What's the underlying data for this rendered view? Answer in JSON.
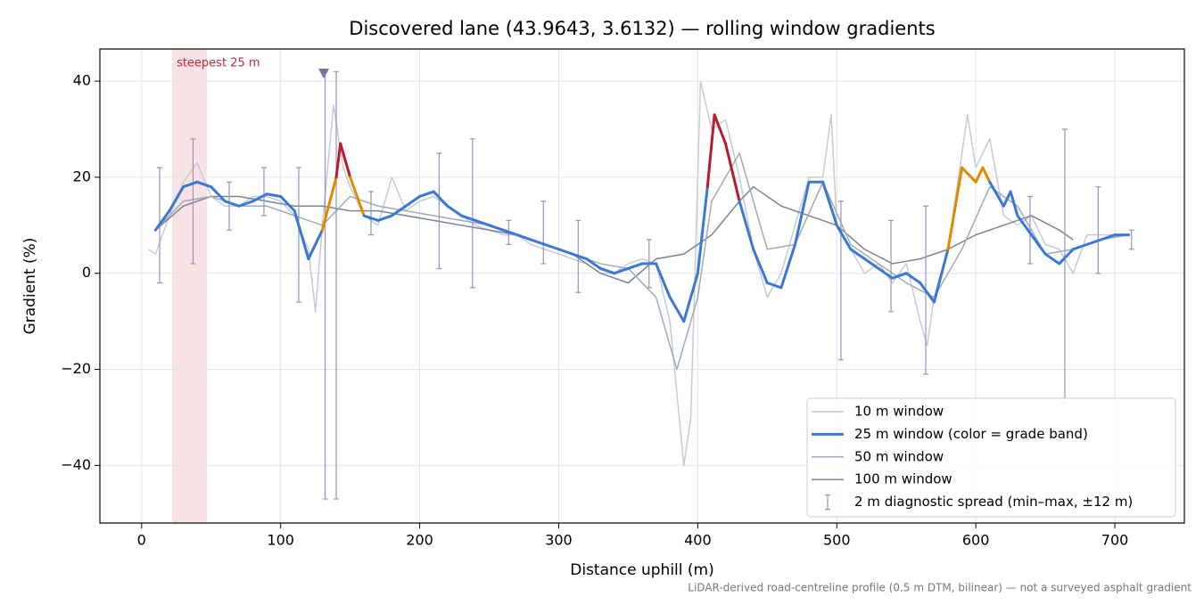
{
  "chart_data": {
    "type": "line",
    "title": "Discovered lane (43.9643, 3.6132) — rolling window gradients",
    "x_label": "Distance uphill (m)",
    "y_label": "Gradient (%)",
    "footnote": "LiDAR-derived road-centreline profile (0.5 m DTM, bilinear) — not a surveyed asphalt gradient",
    "xlim": [
      -30,
      750
    ],
    "ylim": [
      -52,
      46.7
    ],
    "xticks": [
      0,
      100,
      200,
      300,
      400,
      500,
      600,
      700
    ],
    "yticks": [
      {
        "value": -40,
        "label": "−40"
      },
      {
        "value": -20,
        "label": "−20"
      },
      0,
      20,
      40
    ],
    "grid": true,
    "legend": "lower right",
    "highlight": {
      "x": [
        22,
        47
      ],
      "label": "steepest 25 m",
      "color": "#e8a0a8",
      "label_color": "#c0283a"
    },
    "marker": {
      "x": 131,
      "y": 41.5,
      "color": "#8070a8"
    },
    "grade_bands": [
      {
        "min": 20,
        "color": "#e08a00"
      },
      {
        "min": 25,
        "color": "#b81c2c"
      }
    ],
    "series": [
      {
        "name": "10 m window",
        "color": "#c4ccd6",
        "width": 1.5,
        "x": [
          5,
          10,
          20,
          30,
          40,
          50,
          60,
          70,
          80,
          90,
          100,
          110,
          120,
          125,
          130,
          138,
          145,
          150,
          160,
          170,
          180,
          190,
          200,
          210,
          220,
          230,
          240,
          250,
          260,
          270,
          280,
          290,
          300,
          310,
          320,
          330,
          340,
          350,
          360,
          370,
          380,
          390,
          395,
          402,
          410,
          420,
          430,
          440,
          450,
          460,
          470,
          480,
          490,
          496,
          500,
          510,
          520,
          530,
          540,
          550,
          560,
          565,
          570,
          580,
          590,
          594,
          600,
          610,
          620,
          630,
          640,
          650,
          660,
          670,
          680,
          690,
          700,
          710
        ],
        "values": [
          5,
          4,
          12,
          19,
          23,
          16,
          14,
          14,
          16,
          16,
          15,
          12,
          5,
          -8,
          10,
          35,
          22,
          18,
          12,
          10,
          20,
          13,
          15,
          16,
          14,
          12,
          10,
          9,
          8,
          8,
          6,
          5,
          4,
          3,
          2,
          0,
          0,
          2,
          3,
          2,
          -10,
          -40,
          -30,
          40,
          30,
          32,
          20,
          5,
          -5,
          0,
          10,
          20,
          20,
          33,
          10,
          5,
          0,
          2,
          -2,
          2,
          -10,
          -15,
          -5,
          5,
          25,
          33,
          22,
          28,
          12,
          10,
          12,
          6,
          5,
          0,
          8,
          8,
          8,
          8
        ]
      },
      {
        "name": "25 m window (color = grade band)",
        "color": "#3a78d6",
        "width": 3,
        "x": [
          10,
          20,
          30,
          40,
          50,
          60,
          70,
          80,
          90,
          100,
          110,
          120,
          130,
          140,
          143,
          150,
          160,
          170,
          180,
          190,
          200,
          210,
          220,
          230,
          240,
          250,
          260,
          270,
          280,
          290,
          300,
          310,
          320,
          330,
          340,
          350,
          360,
          370,
          380,
          390,
          400,
          407,
          412,
          420,
          430,
          440,
          450,
          460,
          470,
          480,
          490,
          500,
          510,
          520,
          530,
          540,
          550,
          560,
          570,
          580,
          590,
          600,
          605,
          610,
          620,
          625,
          630,
          640,
          650,
          660,
          670,
          680,
          690,
          700,
          710
        ],
        "values": [
          9,
          13,
          18,
          19,
          18,
          15,
          14,
          15,
          16.5,
          16,
          13,
          3,
          9,
          20,
          27,
          20,
          12,
          11,
          12,
          14,
          16,
          17,
          14,
          12,
          11,
          10,
          9,
          8,
          7,
          6,
          5,
          4,
          3,
          1,
          0,
          1,
          2,
          2,
          -5,
          -10,
          0,
          18,
          33,
          27,
          15,
          5,
          -2,
          -3,
          6,
          19,
          19,
          10,
          5,
          3,
          1,
          -1,
          0,
          -2,
          -6,
          5,
          22,
          19,
          22,
          19,
          14,
          17,
          12,
          8,
          4,
          2,
          5,
          6,
          7,
          8,
          8
        ]
      },
      {
        "name": "50 m window",
        "color": "#a0aab8",
        "width": 1.5,
        "x": [
          10,
          30,
          50,
          70,
          90,
          110,
          130,
          150,
          170,
          190,
          210,
          230,
          250,
          270,
          290,
          310,
          330,
          350,
          370,
          385,
          400,
          410,
          420,
          430,
          440,
          450,
          470,
          490,
          510,
          530,
          550,
          570,
          590,
          610,
          630,
          650,
          670,
          690,
          710
        ],
        "values": [
          9,
          15,
          16,
          14,
          14,
          12,
          10,
          16,
          14,
          13,
          12,
          11,
          10,
          8,
          6,
          4,
          2,
          1,
          -5,
          -20,
          -5,
          15,
          20,
          25,
          15,
          5,
          6,
          19,
          6,
          2,
          -2,
          -5,
          5,
          18,
          14,
          4,
          5,
          7,
          8
        ]
      },
      {
        "name": "100 m window",
        "color": "#7c8494",
        "width": 1.5,
        "x": [
          10,
          30,
          50,
          70,
          90,
          110,
          130,
          150,
          170,
          190,
          210,
          230,
          250,
          270,
          290,
          310,
          330,
          350,
          370,
          390,
          410,
          430,
          440,
          460,
          480,
          500,
          520,
          540,
          560,
          580,
          600,
          620,
          640,
          660,
          670
        ],
        "values": [
          9,
          14,
          16,
          16,
          15,
          14,
          14,
          13,
          13,
          12,
          11,
          10,
          9,
          8,
          6,
          4,
          0,
          -2,
          3,
          4,
          8,
          15,
          18,
          14,
          12,
          10,
          5,
          2,
          3,
          5,
          8,
          10,
          12,
          9,
          7
        ]
      },
      {
        "name": "2 m diagnostic spread (min–max, ±12 m)",
        "color": "#9b92b8",
        "kind": "errorbar",
        "x": [
          13,
          37,
          63,
          88,
          113,
          132,
          140,
          165,
          214,
          238,
          264,
          289,
          314,
          365,
          503,
          539,
          564,
          639,
          664,
          688,
          712
        ],
        "low": [
          -2,
          2,
          9,
          12,
          -6,
          -47,
          -47,
          8,
          1,
          -3,
          6,
          2,
          -4,
          -3,
          -18,
          -8,
          -21,
          2,
          -27,
          0,
          5
        ],
        "high": [
          22,
          28,
          19,
          22,
          22,
          42,
          42,
          17,
          25,
          28,
          11,
          15,
          11,
          7,
          15,
          11,
          14,
          16,
          30,
          18,
          9
        ]
      }
    ]
  }
}
